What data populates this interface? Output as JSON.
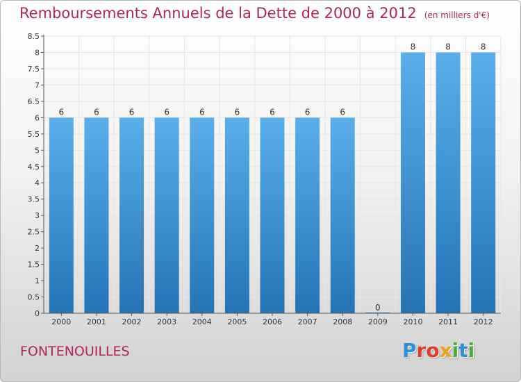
{
  "chart_data": {
    "type": "bar",
    "title": "Remboursements Annuels de la Dette de 2000 à 2012",
    "subtitle": "(en milliers d'€)",
    "xlabel": "",
    "ylabel": "",
    "categories": [
      "2000",
      "2001",
      "2002",
      "2003",
      "2004",
      "2005",
      "2006",
      "2007",
      "2008",
      "2009",
      "2010",
      "2011",
      "2012"
    ],
    "values": [
      6,
      6,
      6,
      6,
      6,
      6,
      6,
      6,
      6,
      0,
      8,
      8,
      8
    ],
    "data_labels": [
      "6",
      "6",
      "6",
      "6",
      "6",
      "6",
      "6",
      "6",
      "6",
      "0",
      "8",
      "8",
      "8"
    ],
    "ylim": [
      0,
      8.5
    ],
    "yticks": [
      0,
      0.5,
      1,
      1.5,
      2,
      2.5,
      3,
      3.5,
      4,
      4.5,
      5,
      5.5,
      6,
      6.5,
      7,
      7.5,
      8,
      8.5
    ],
    "ytick_labels": [
      "0",
      "0.5",
      "1",
      "1.5",
      "2",
      "2.5",
      "3",
      "3.5",
      "4",
      "4.5",
      "5",
      "5.5",
      "6",
      "6.5",
      "7",
      "7.5",
      "8",
      "8.5"
    ],
    "grid": true,
    "bar_color": "#3f95d9"
  },
  "footer": {
    "commune": "FONTENOUILLES",
    "logo_letters": [
      {
        "ch": "P",
        "color": "#2d8fd5"
      },
      {
        "ch": "r",
        "color": "#e03a2f"
      },
      {
        "ch": "o",
        "color": "#e03a2f"
      },
      {
        "ch": "x",
        "color": "#f0a020"
      },
      {
        "ch": "i",
        "color": "#4cae3a"
      },
      {
        "ch": "t",
        "color": "#2d8fd5"
      },
      {
        "ch": "i",
        "color": "#4cae3a"
      }
    ]
  }
}
